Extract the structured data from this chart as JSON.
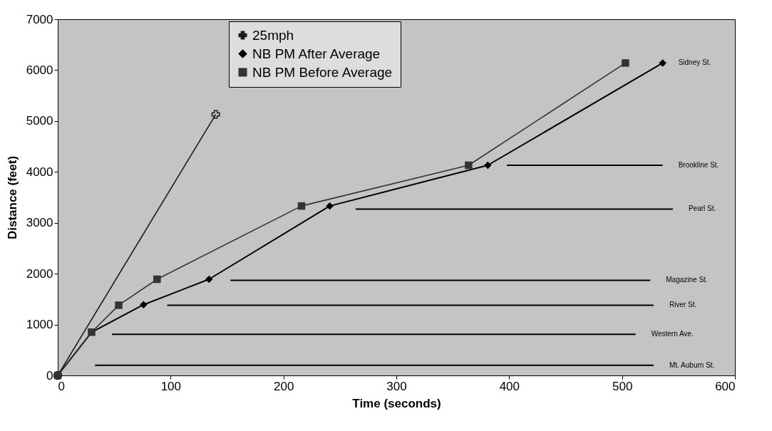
{
  "chart_data": {
    "type": "line",
    "xlabel": "Time (seconds)",
    "ylabel": "Distance (feet)",
    "xlim": [
      0,
      600
    ],
    "xticks": [
      0,
      100,
      200,
      300,
      400,
      500,
      600
    ],
    "ylim": [
      0,
      7000
    ],
    "yticks": [
      0,
      1000,
      2000,
      3000,
      4000,
      5000,
      6000,
      7000
    ],
    "grid": false,
    "legend": "top",
    "series": [
      {
        "name": "25mph",
        "color": "#1a1a1a",
        "marker": "cross",
        "x": [
          0,
          140
        ],
        "values": [
          0,
          5130
        ]
      },
      {
        "name": "NB PM After Average",
        "color": "#000000",
        "marker": "diamond",
        "x": [
          0,
          30,
          76,
          134,
          241,
          381,
          536
        ],
        "values": [
          0,
          850,
          1390,
          1890,
          3330,
          4130,
          6140
        ]
      },
      {
        "name": "NB PM Before Average",
        "color": "#333333",
        "marker": "square",
        "x": [
          0,
          30,
          54,
          88,
          216,
          364,
          503
        ],
        "values": [
          0,
          850,
          1380,
          1890,
          3330,
          4130,
          6140
        ]
      },
      {
        "name": "Brookline St.",
        "color": "#000000",
        "marker": "none",
        "x": [
          398,
          536
        ],
        "values": [
          4130,
          4130
        ]
      },
      {
        "name": "Pearl St.",
        "color": "#000000",
        "marker": "none",
        "x": [
          264,
          545
        ],
        "values": [
          3270,
          3270
        ]
      },
      {
        "name": "Magazine St.",
        "color": "#000000",
        "marker": "none",
        "x": [
          153,
          525
        ],
        "values": [
          1870,
          1870
        ]
      },
      {
        "name": "River St.",
        "color": "#000000",
        "marker": "none",
        "x": [
          97,
          528
        ],
        "values": [
          1380,
          1380
        ]
      },
      {
        "name": "Western Ave.",
        "color": "#000000",
        "marker": "none",
        "x": [
          48,
          512
        ],
        "values": [
          810,
          810
        ]
      },
      {
        "name": "Mt. Auburn St.",
        "color": "#000000",
        "marker": "none",
        "x": [
          33,
          528
        ],
        "values": [
          200,
          200
        ]
      }
    ],
    "annotations": [
      {
        "text": "Sidney St.",
        "x": 536,
        "y": 6140
      }
    ]
  }
}
